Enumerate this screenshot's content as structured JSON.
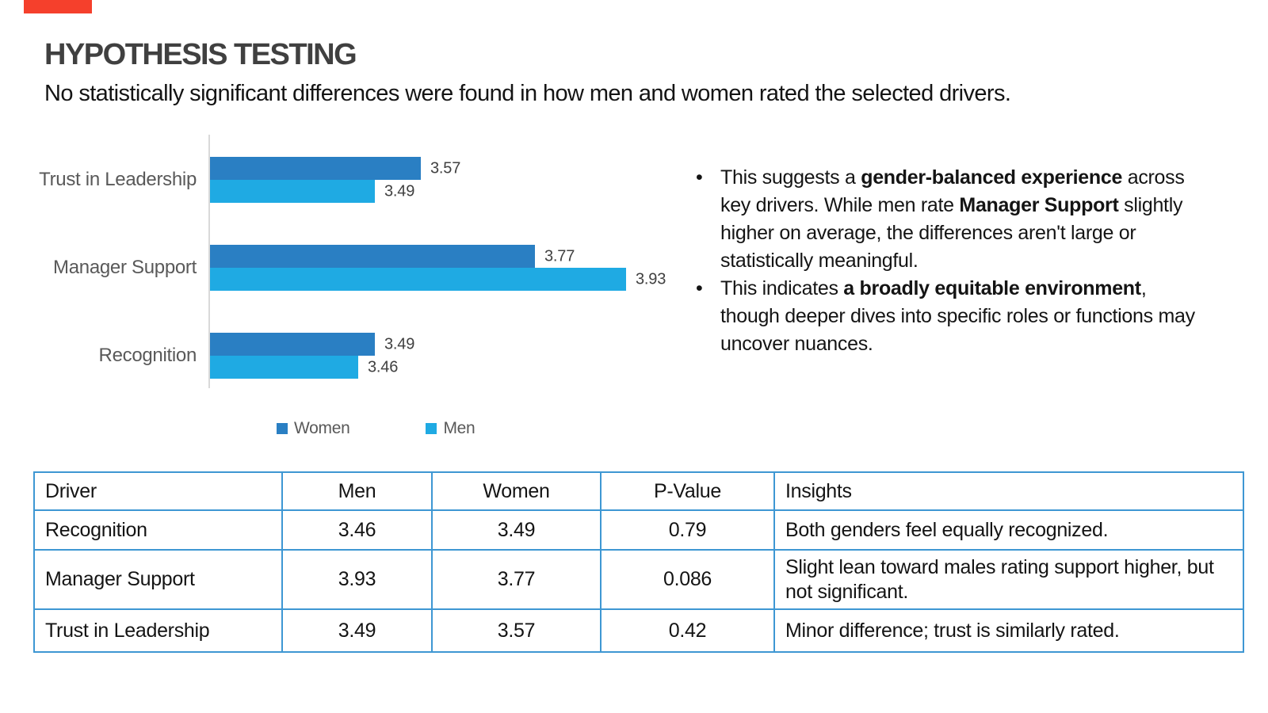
{
  "accent_color": "#F5402C",
  "header": {
    "title": "HYPOTHESIS TESTING",
    "subtitle": "No statistically significant differences were found in how men and women rated the selected drivers."
  },
  "chart_data": {
    "type": "bar",
    "orientation": "horizontal",
    "title": "",
    "categories": [
      "Trust in Leadership",
      "Manager Support",
      "Recognition"
    ],
    "series": [
      {
        "name": "Women",
        "color": "#2A7FC3",
        "values": [
          3.57,
          3.77,
          3.49
        ]
      },
      {
        "name": "Men",
        "color": "#1FAAE3",
        "values": [
          3.49,
          3.93,
          3.46
        ]
      }
    ],
    "xlim": [
      3.2,
      4.0
    ],
    "data_labels": true,
    "grid": false,
    "legend_position": "bottom",
    "axis_color": "#D9D9D9",
    "label_color": "#595959"
  },
  "insights": {
    "bullets": [
      {
        "segments": [
          {
            "text": "This suggests a "
          },
          {
            "text": "gender-balanced experience",
            "bold": true
          },
          {
            "text": " across key drivers. While men rate "
          },
          {
            "text": "Manager Support",
            "bold": true
          },
          {
            "text": " slightly higher on average, the differences aren't large or statistically meaningful."
          }
        ]
      },
      {
        "segments": [
          {
            "text": "This indicates "
          },
          {
            "text": "a broadly equitable environment",
            "bold": true
          },
          {
            "text": ", though deeper dives into specific roles or functions may uncover nuances."
          }
        ]
      }
    ]
  },
  "table": {
    "border_color": "#3E97D3",
    "headers": [
      "Driver",
      "Men",
      "Women",
      "P-Value",
      "Insights"
    ],
    "rows": [
      {
        "driver": "Recognition",
        "men": 3.46,
        "women": 3.49,
        "p_value": 0.79,
        "insight": "Both genders feel equally recognized."
      },
      {
        "driver": "Manager Support",
        "men": 3.93,
        "women": 3.77,
        "p_value": 0.086,
        "insight": "Slight lean toward males rating support higher, but not significant."
      },
      {
        "driver": "Trust in Leadership",
        "men": 3.49,
        "women": 3.57,
        "p_value": 0.42,
        "insight": "Minor difference; trust is similarly rated."
      }
    ]
  }
}
